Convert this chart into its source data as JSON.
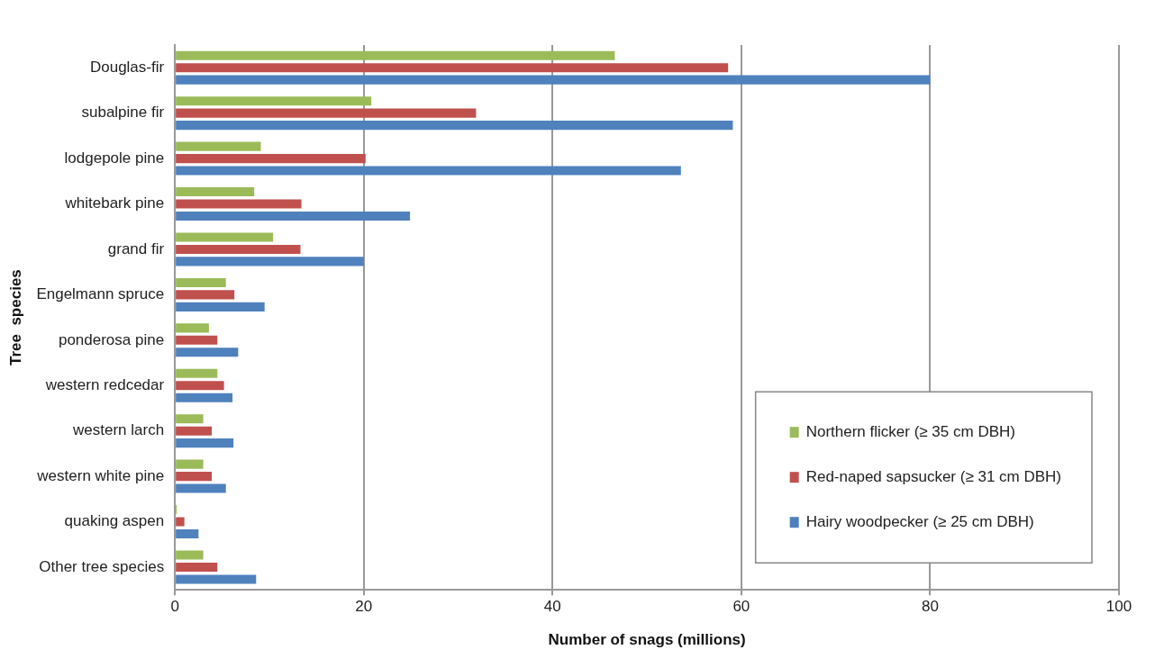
{
  "chart_data": {
    "type": "bar",
    "orientation": "horizontal",
    "xlabel": "Number of snags (millions)",
    "ylabel": "Tree  species",
    "categories": [
      "Douglas-fir",
      "subalpine fir",
      "lodgepole pine",
      "whitebark pine",
      "grand fir",
      "Engelmann spruce",
      "ponderosa pine",
      "western redcedar",
      "western larch",
      "western white pine",
      "quaking aspen",
      "Other tree species"
    ],
    "series": [
      {
        "name": "Northern flicker (≥ 35 cm DBH)",
        "color": "#9bbb59",
        "values": [
          46.6,
          20.8,
          9.1,
          8.4,
          10.4,
          5.4,
          3.6,
          4.5,
          3.0,
          3.0,
          0.2,
          3.0
        ]
      },
      {
        "name": "Red-naped sapsucker (≥ 31 cm DBH)",
        "color": "#c0504d",
        "values": [
          58.6,
          31.9,
          20.2,
          13.4,
          13.3,
          6.3,
          4.5,
          5.2,
          3.9,
          3.9,
          1.0,
          4.5
        ]
      },
      {
        "name": "Hairy woodpecker (≥ 25 cm DBH)",
        "color": "#4f81bd",
        "values": [
          80.0,
          59.1,
          53.6,
          24.9,
          20.0,
          9.5,
          6.7,
          6.1,
          6.2,
          5.4,
          2.5,
          8.6
        ]
      }
    ],
    "xlim": [
      0,
      100
    ],
    "xticks": [
      0,
      20,
      40,
      60,
      80,
      100
    ],
    "grid": "x",
    "legend": "bottom right"
  }
}
